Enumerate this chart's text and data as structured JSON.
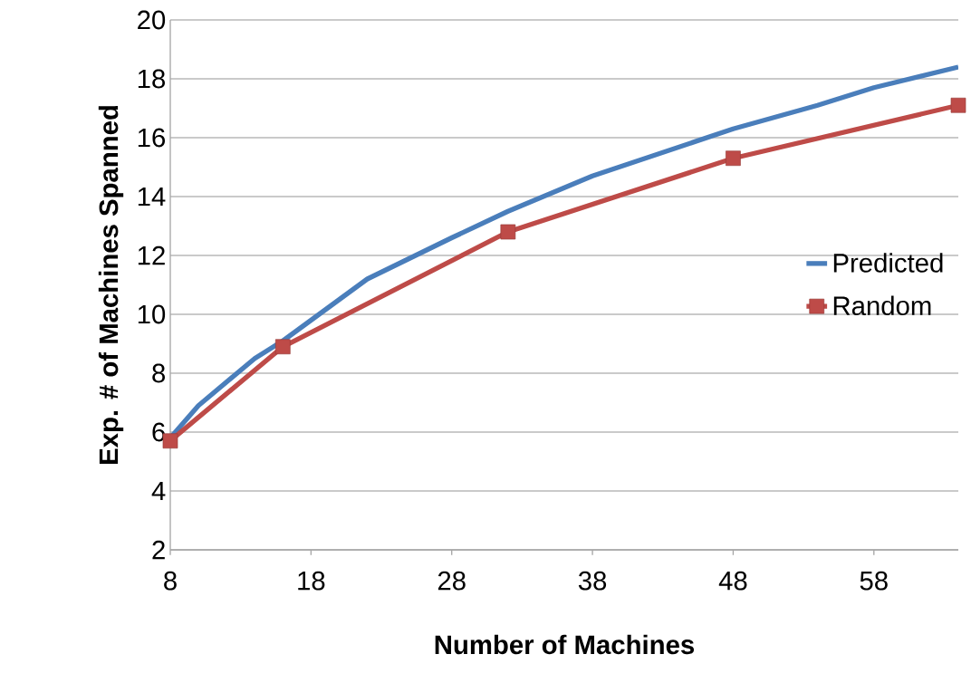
{
  "chart_data": {
    "type": "line",
    "xlabel": "Number of Machines",
    "ylabel": "Exp. # of Machines Spanned",
    "xlim": [
      8,
      64
    ],
    "ylim": [
      2,
      20
    ],
    "xticks": [
      8,
      18,
      28,
      38,
      48,
      58
    ],
    "yticks": [
      2,
      4,
      6,
      8,
      10,
      12,
      14,
      16,
      18,
      20
    ],
    "grid": "y",
    "legend": "right",
    "line_style": "solid",
    "series": [
      {
        "name": "Predicted",
        "color": "#4a7ebb",
        "marker": "none",
        "x": [
          8,
          10,
          14,
          16,
          22,
          28,
          32,
          38,
          48,
          54,
          58,
          64
        ],
        "values": [
          5.8,
          6.9,
          8.5,
          9.1,
          11.2,
          12.6,
          13.5,
          14.7,
          16.3,
          17.1,
          17.7,
          18.4
        ]
      },
      {
        "name": "Random",
        "color": "#be4b48",
        "marker": "square",
        "x": [
          8,
          16,
          32,
          48,
          64
        ],
        "values": [
          5.7,
          8.9,
          12.8,
          15.3,
          17.1
        ]
      }
    ]
  }
}
